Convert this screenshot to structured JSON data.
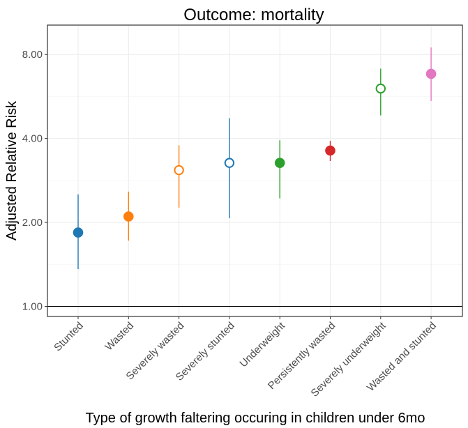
{
  "chart_data": {
    "type": "scatter",
    "title": "Outcome: mortality",
    "xlabel": "Type of growth faltering occuring in children under 6mo",
    "ylabel": "Adjusted Relative Risk",
    "y_scale": "log",
    "ylim": [
      0.92,
      10.2
    ],
    "y_ticks": [
      1,
      2,
      4,
      8
    ],
    "y_tick_labels": [
      "1.00",
      "2.00",
      "4.00",
      "8.00"
    ],
    "reference_line": 1,
    "grid": true,
    "legend": "none",
    "categories": [
      "Stunted",
      "Wasted",
      "Severely wasted",
      "Severely stunted",
      "Underweight",
      "Persistently wasted",
      "Severely underweight",
      "Wasted and stunted"
    ],
    "points": [
      {
        "category": "Stunted",
        "estimate": 1.84,
        "ci_lower": 1.36,
        "ci_upper": 2.52,
        "marker": "filled",
        "color": "#1f78b4"
      },
      {
        "category": "Wasted",
        "estimate": 2.1,
        "ci_lower": 1.72,
        "ci_upper": 2.58,
        "marker": "filled",
        "color": "#ff7f0e"
      },
      {
        "category": "Severely wasted",
        "estimate": 3.08,
        "ci_lower": 2.26,
        "ci_upper": 3.78,
        "marker": "hollow",
        "color": "#ff7f0e"
      },
      {
        "category": "Severely stunted",
        "estimate": 3.27,
        "ci_lower": 2.07,
        "ci_upper": 4.73,
        "marker": "hollow",
        "color": "#1f78b4"
      },
      {
        "category": "Underweight",
        "estimate": 3.27,
        "ci_lower": 2.44,
        "ci_upper": 3.94,
        "marker": "filled",
        "color": "#2ca02c"
      },
      {
        "category": "Persistently wasted",
        "estimate": 3.62,
        "ci_lower": 3.32,
        "ci_upper": 3.92,
        "marker": "filled",
        "color": "#d62728"
      },
      {
        "category": "Severely underweight",
        "estimate": 6.04,
        "ci_lower": 4.84,
        "ci_upper": 7.12,
        "marker": "hollow",
        "color": "#2ca02c"
      },
      {
        "category": "Wasted and stunted",
        "estimate": 6.82,
        "ci_lower": 5.45,
        "ci_upper": 8.48,
        "marker": "filled",
        "color": "#e377c2"
      }
    ]
  }
}
